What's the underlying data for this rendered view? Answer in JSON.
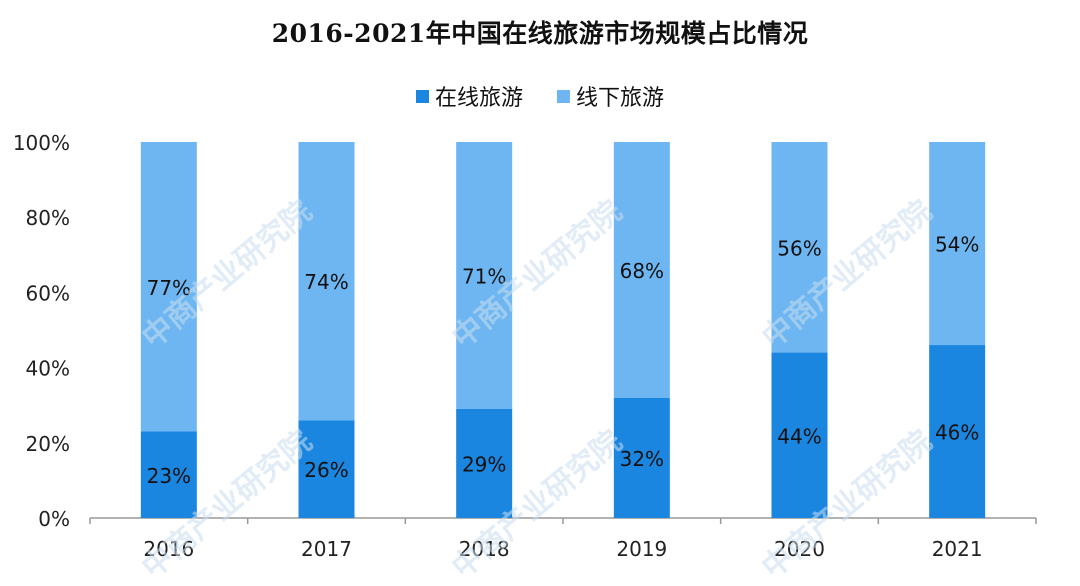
{
  "chart_data": {
    "type": "bar",
    "stacked": true,
    "title": "2016-2021年中国在线旅游市场规模占比情况",
    "categories": [
      "2016",
      "2017",
      "2018",
      "2019",
      "2020",
      "2021"
    ],
    "series": [
      {
        "name": "在线旅游",
        "values": [
          23,
          26,
          29,
          32,
          44,
          46
        ],
        "labels": [
          "23%",
          "26%",
          "29%",
          "32%",
          "44%",
          "46%"
        ],
        "color": "#1a86e0"
      },
      {
        "name": "线下旅游",
        "values": [
          77,
          74,
          71,
          68,
          56,
          54
        ],
        "labels": [
          "77%",
          "74%",
          "71%",
          "68%",
          "56%",
          "54%"
        ],
        "color": "#6eb6f2"
      }
    ],
    "ylim": [
      0,
      100
    ],
    "yticks": [
      "0%",
      "20%",
      "40%",
      "60%",
      "80%",
      "100%"
    ],
    "ytick_values": [
      0,
      20,
      40,
      60,
      80,
      100
    ],
    "grid": false,
    "legend_position": "top-center"
  },
  "watermark": "中商产业研究院"
}
